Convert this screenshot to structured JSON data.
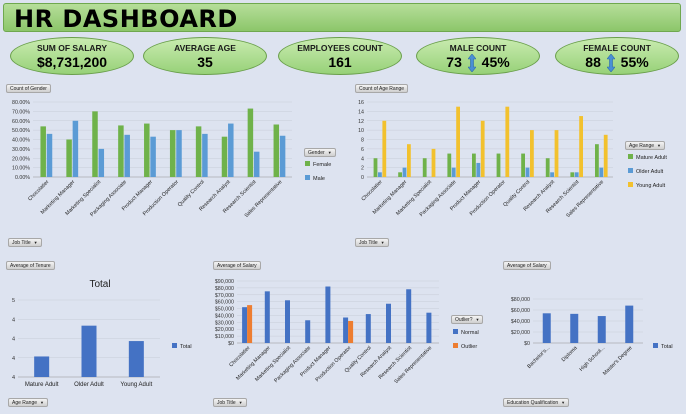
{
  "header": {
    "title": "HR DASHBOARD"
  },
  "kpis": [
    {
      "label": "SUM OF SALARY",
      "value": "$8,731,200"
    },
    {
      "label": "AVERAGE AGE",
      "value": "35"
    },
    {
      "label": "EMPLOYEES COUNT",
      "value": "161"
    },
    {
      "label": "MALE COUNT",
      "value": "73",
      "percent": "45%"
    },
    {
      "label": "FEMALE COUNT",
      "value": "88",
      "percent": "55%"
    }
  ],
  "filters": {
    "job_title": "Job Title",
    "gender": "Gender",
    "age_range": "Age Range",
    "outlier": "Outlier?",
    "education": "Education Qualification"
  },
  "colors": {
    "green": "#6fb24a",
    "blue": "#5b9bd5",
    "gold": "#f2c12e",
    "navy": "#4472c4",
    "orange": "#ed7d31"
  },
  "chart_data": [
    {
      "type": "bar",
      "title": "Count of Gender",
      "categories": [
        "Chocolatier",
        "Marketing Manager",
        "Marketing Specialist",
        "Packaging Associate",
        "Product Manager",
        "Production Operator",
        "Quality Control",
        "Research Analyst",
        "Research Scientist",
        "Sales Representative"
      ],
      "series": [
        {
          "name": "Female",
          "values": [
            54,
            40,
            70,
            55,
            57,
            50,
            54,
            43,
            73,
            56
          ]
        },
        {
          "name": "Male",
          "values": [
            46,
            60,
            30,
            45,
            43,
            50,
            46,
            57,
            27,
            44
          ]
        }
      ],
      "yticks": [
        "0.00%",
        "10.00%",
        "20.00%",
        "30.00%",
        "40.00%",
        "50.00%",
        "60.00%",
        "70.00%",
        "80.00%"
      ],
      "ylim": [
        0,
        80
      ],
      "legend": "right"
    },
    {
      "type": "bar",
      "title": "Count of Age Range",
      "categories": [
        "Chocolatier",
        "Marketing Manager",
        "Marketing Specialist",
        "Packaging Associate",
        "Product Manager",
        "Production Operator",
        "Quality Control",
        "Research Analyst",
        "Research Scientist",
        "Sales Representative"
      ],
      "series": [
        {
          "name": "Mature Adult",
          "values": [
            4,
            1,
            4,
            5,
            5,
            5,
            5,
            4,
            1,
            7
          ]
        },
        {
          "name": "Older Adult",
          "values": [
            1,
            2,
            0,
            2,
            3,
            0,
            2,
            1,
            1,
            2
          ]
        },
        {
          "name": "Young Adult",
          "values": [
            12,
            7,
            6,
            15,
            12,
            15,
            10,
            10,
            13,
            9
          ]
        }
      ],
      "yticks": [
        "0",
        "2",
        "4",
        "6",
        "8",
        "10",
        "12",
        "14",
        "16"
      ],
      "ylim": [
        0,
        16
      ],
      "legend": "right"
    },
    {
      "type": "bar",
      "title": "Average of Tenure",
      "subtitle": "Total",
      "categories": [
        "Mature Adult",
        "Older Adult",
        "Young Adult"
      ],
      "series": [
        {
          "name": "Total",
          "values": [
            3.9,
            4.5,
            4.2
          ]
        }
      ],
      "yticks": [
        "4",
        "4",
        "4",
        "4",
        "5"
      ],
      "ylim": [
        3.5,
        5.0
      ],
      "legend": "right"
    },
    {
      "type": "bar",
      "title": "Average of Salary",
      "categories": [
        "Chocolatier",
        "Marketing Manager",
        "Marketing Specialist",
        "Packaging Associate",
        "Product Manager",
        "Production Operator",
        "Quality Control",
        "Research Analyst",
        "Research Scientist",
        "Sales Representative"
      ],
      "series": [
        {
          "name": "Normal",
          "values": [
            52000,
            75000,
            62000,
            33000,
            82000,
            37000,
            42000,
            57000,
            78000,
            44000
          ]
        },
        {
          "name": "Outlier",
          "values": [
            55000,
            null,
            null,
            null,
            null,
            32000,
            null,
            null,
            null,
            null
          ]
        }
      ],
      "yticks": [
        "$0",
        "$10,000",
        "$20,000",
        "$30,000",
        "$40,000",
        "$50,000",
        "$60,000",
        "$70,000",
        "$80,000",
        "$90,000"
      ],
      "ylim": [
        0,
        90000
      ],
      "legend": "right"
    },
    {
      "type": "bar",
      "title": "Average of Salary",
      "categories": [
        "Bachelor's...",
        "Diploma",
        "High School...",
        "Master's Degree"
      ],
      "series": [
        {
          "name": "Total",
          "values": [
            54000,
            53000,
            49000,
            68000
          ]
        }
      ],
      "yticks": [
        "$0",
        "$20,000",
        "$40,000",
        "$60,000",
        "$80,000"
      ],
      "ylim": [
        0,
        80000
      ],
      "legend": "right"
    }
  ]
}
